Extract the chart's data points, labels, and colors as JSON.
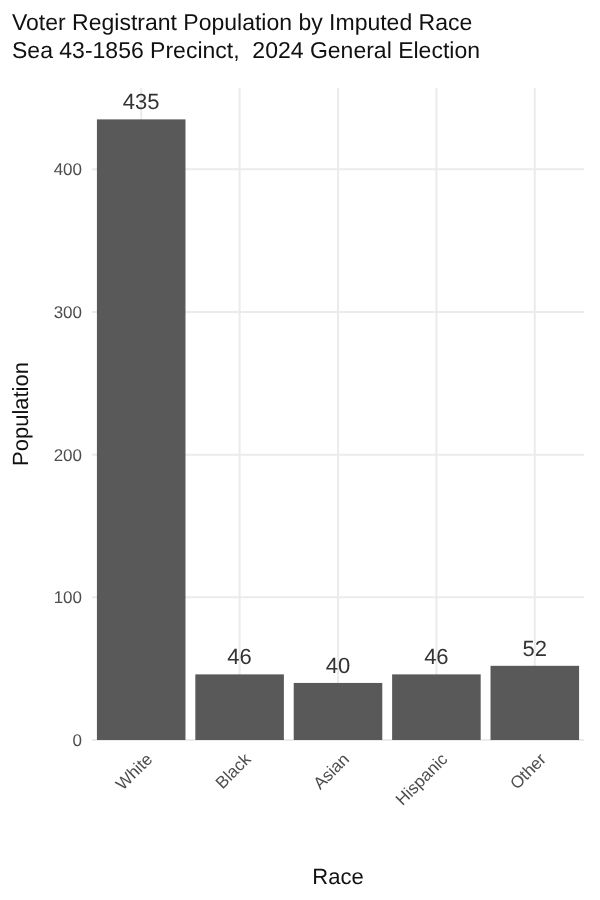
{
  "chart_data": {
    "type": "bar",
    "title": "Voter Registrant Population by Imputed Race",
    "subtitle": "Sea 43-1856 Precinct,  2024 General Election",
    "xlabel": "Race",
    "ylabel": "Population",
    "categories": [
      "White",
      "Black",
      "Asian",
      "Hispanic",
      "Other"
    ],
    "values": [
      435,
      46,
      40,
      46,
      52
    ],
    "color": "#595959",
    "data_labels": true,
    "ylim": [
      0,
      457
    ],
    "yticks": [
      0,
      100,
      200,
      300,
      400
    ],
    "grid": true
  }
}
